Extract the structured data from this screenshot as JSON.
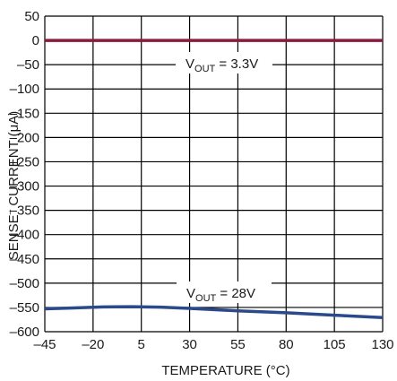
{
  "chart_data": {
    "type": "line",
    "xlabel": "TEMPERATURE (°C)",
    "ylabel_parts": [
      "SENSE",
      "–",
      " CURRENT (μA)"
    ],
    "xlim": [
      -45,
      130
    ],
    "ylim": [
      -600,
      50
    ],
    "x_ticks": [
      -45,
      -20,
      5,
      30,
      55,
      80,
      105,
      130
    ],
    "x_tick_labels": [
      "–45",
      "–20",
      "5",
      "30",
      "55",
      "80",
      "105",
      "130"
    ],
    "y_ticks": [
      50,
      0,
      -50,
      -100,
      -150,
      -200,
      -250,
      -300,
      -350,
      -400,
      -450,
      -500,
      -550,
      -600
    ],
    "y_tick_labels": [
      "50",
      "0",
      "–50",
      "–100",
      "–150",
      "–200",
      "–250",
      "–300",
      "–350",
      "–400",
      "–450",
      "–500",
      "–550",
      "–600"
    ],
    "grid": true,
    "series": [
      {
        "color": "#8b1a3c",
        "x": [
          -45,
          -20,
          5,
          30,
          55,
          80,
          105,
          130
        ],
        "y": [
          0,
          0,
          0,
          0,
          0,
          0,
          0,
          0
        ]
      },
      {
        "color": "#2b4a8b",
        "x": [
          -45,
          -30,
          -15,
          0,
          15,
          30,
          55,
          80,
          105,
          130
        ],
        "y": [
          -553,
          -551,
          -549,
          -548.5,
          -549.5,
          -552,
          -557,
          -561,
          -566,
          -571
        ]
      }
    ],
    "annotations": [
      {
        "prefix": "V",
        "sub": "OUT",
        "suffix": " = 3.3V"
      },
      {
        "prefix": "V",
        "sub": "OUT",
        "suffix": " = 28V"
      }
    ]
  }
}
